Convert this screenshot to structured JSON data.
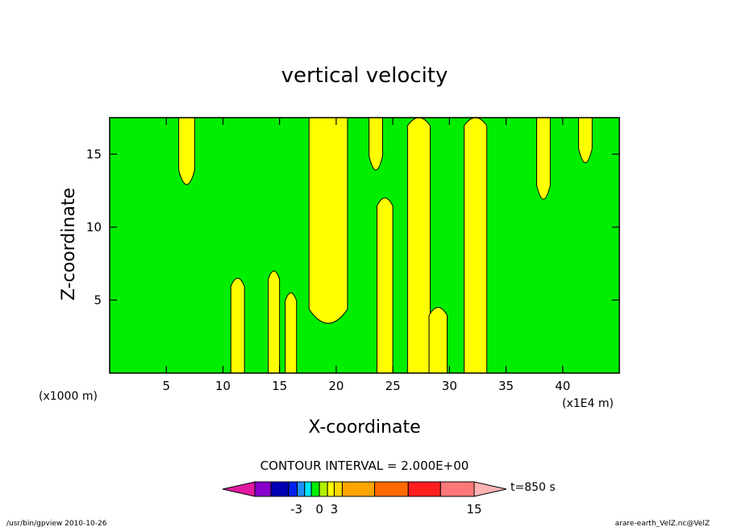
{
  "chart_data": {
    "type": "heatmap",
    "title": "vertical velocity",
    "xlabel": "X-coordinate",
    "ylabel": "Z-coordinate",
    "x_unit_left": "(x1000 m)",
    "x_unit_right": "(x1E4 m)",
    "xlim": [
      0,
      45
    ],
    "ylim": [
      0,
      17.5
    ],
    "x_ticks": [
      5,
      10,
      15,
      20,
      25,
      30,
      35,
      40
    ],
    "y_ticks": [
      5,
      10,
      15
    ],
    "background_color": "#00ee00",
    "yellow_regions": [
      {
        "name": "plume-7",
        "x_center": 6.8,
        "half_width": 0.7,
        "top": 12.5,
        "bottom": 17.5
      },
      {
        "name": "plume-20",
        "x_center": 19.3,
        "half_width": 1.7,
        "top": 3.0,
        "bottom": 17.5
      },
      {
        "name": "plume-23",
        "x_center": 23.5,
        "half_width": 0.6,
        "top": 13.5,
        "bottom": 17.5
      },
      {
        "name": "plume-24",
        "x_center": 24.3,
        "half_width": 0.7,
        "top": 0,
        "bottom": 12.0
      },
      {
        "name": "plume-27",
        "x_center": 27.3,
        "half_width": 1.0,
        "top": 0,
        "bottom": 17.5
      },
      {
        "name": "plume-32",
        "x_center": 32.3,
        "half_width": 1.0,
        "top": 0,
        "bottom": 17.5
      },
      {
        "name": "plume-38",
        "x_center": 38.3,
        "half_width": 0.6,
        "top": 11.5,
        "bottom": 17.5
      },
      {
        "name": "plume-42",
        "x_center": 42.0,
        "half_width": 0.6,
        "top": 14.0,
        "bottom": 17.5
      },
      {
        "name": "plume-11",
        "x_center": 11.3,
        "half_width": 0.6,
        "top": 0,
        "bottom": 6.5
      },
      {
        "name": "plume-14",
        "x_center": 14.5,
        "half_width": 0.5,
        "top": 0,
        "bottom": 7.0
      },
      {
        "name": "plume-16",
        "x_center": 16.0,
        "half_width": 0.5,
        "top": 0,
        "bottom": 5.5
      },
      {
        "name": "plume-29",
        "x_center": 29.0,
        "half_width": 0.8,
        "top": 0,
        "bottom": 4.5
      }
    ],
    "contour_interval": "CONTOUR INTERVAL = 2.000E+00",
    "colorbar": {
      "colors": [
        "#e0199e",
        "#8800cc",
        "#0000b4",
        "#0022ee",
        "#1e90ff",
        "#00e5ff",
        "#00ee00",
        "#b4f000",
        "#ffff00",
        "#ffd700",
        "#ffa500",
        "#ff6a00",
        "#ff1e1e",
        "#ff7878",
        "#ffb4b4"
      ],
      "tick_labels": [
        "-3",
        "0",
        "3",
        "15"
      ]
    },
    "time_label": "t=850 s"
  },
  "footer": {
    "left": "/usr/bin/gpview   2010-10-26",
    "right": "arare-earth_VelZ.nc@VelZ"
  }
}
